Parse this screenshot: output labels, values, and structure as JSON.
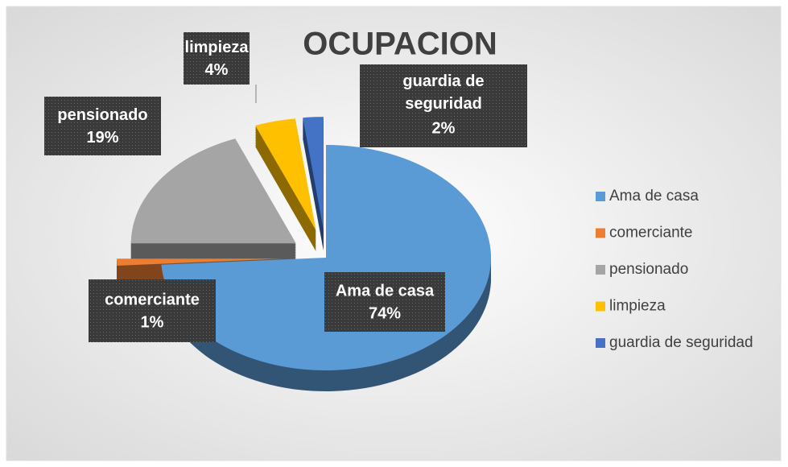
{
  "chart_data": {
    "type": "pie",
    "title": "OCUPACION",
    "categories": [
      "Ama de casa",
      "comerciante",
      "pensionado",
      "limpieza",
      "guardia de seguridad"
    ],
    "values": [
      74,
      1,
      19,
      4,
      2
    ],
    "value_labels": [
      "74%",
      "1%",
      "19%",
      "4%",
      "2%"
    ],
    "colors": [
      "#5b9bd5",
      "#ed7d31",
      "#a5a5a5",
      "#ffc000",
      "#4472c4"
    ],
    "legend": "right"
  }
}
